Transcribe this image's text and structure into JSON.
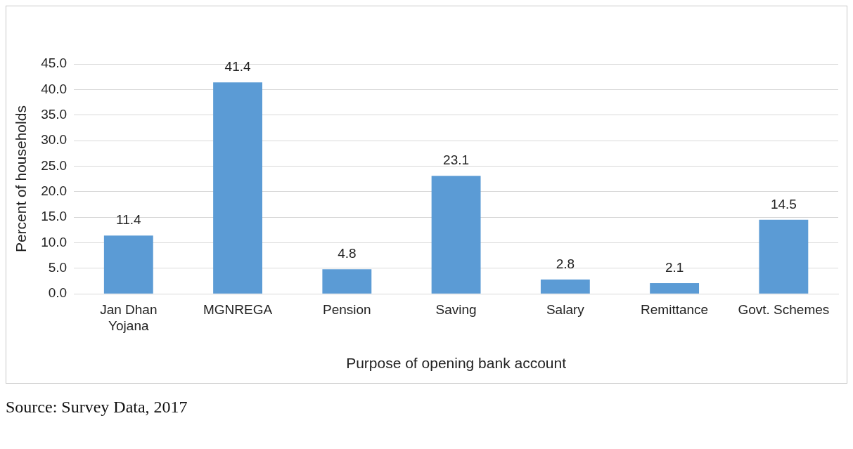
{
  "chart_data": {
    "type": "bar",
    "xlabel": "Purpose of opening bank account",
    "ylabel": "Percent of households",
    "categories": [
      "Jan Dhan Yojana",
      "MGNREGA",
      "Pension",
      "Saving",
      "Salary",
      "Remittance",
      "Govt. Schemes"
    ],
    "values": [
      11.4,
      41.4,
      4.8,
      23.1,
      2.8,
      2.1,
      14.5
    ],
    "color": "#5b9bd5",
    "ylim": [
      0,
      45
    ],
    "yticks": [
      {
        "value": 0,
        "label": "0.0"
      },
      {
        "value": 5,
        "label": "5.0"
      },
      {
        "value": 10,
        "label": "10.0"
      },
      {
        "value": 15,
        "label": "15.0"
      },
      {
        "value": 20,
        "label": "20.0"
      },
      {
        "value": 25,
        "label": "25.0"
      },
      {
        "value": 30,
        "label": "30.0"
      },
      {
        "value": 35,
        "label": "35.0"
      },
      {
        "value": 40,
        "label": "40.0"
      },
      {
        "value": 45,
        "label": "45.0"
      }
    ],
    "grid": "y",
    "legend": false,
    "data_labels": true,
    "annotations": [
      "Source: Survey Data, 2017"
    ]
  }
}
